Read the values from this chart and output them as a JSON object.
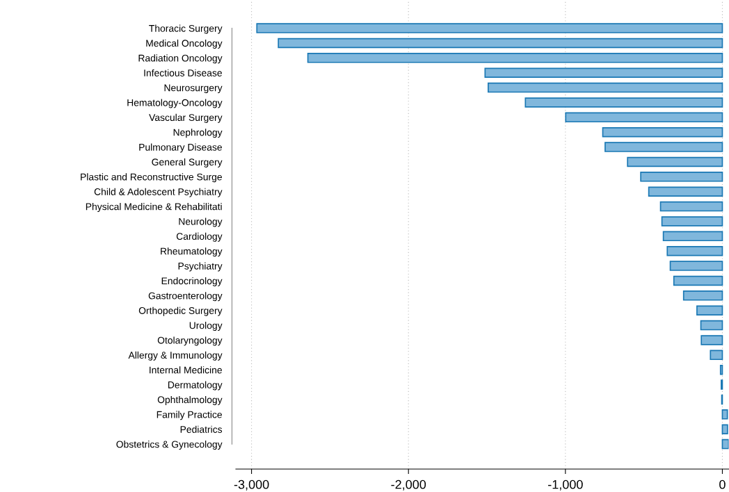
{
  "chart_data": {
    "type": "bar",
    "orientation": "horizontal",
    "categories": [
      "Thoracic Surgery",
      "Medical Oncology",
      "Radiation Oncology",
      "Infectious Disease",
      "Neurosurgery",
      "Hematology-Oncology",
      "Vascular Surgery",
      "Nephrology",
      "Pulmonary Disease",
      "General Surgery",
      "Plastic and Reconstructive Surge",
      "Child & Adolescent Psychiatry",
      "Physical Medicine & Rehabilitati",
      "Neurology",
      "Cardiology",
      "Rheumatology",
      "Psychiatry",
      "Endocrinology",
      "Gastroenterology",
      "Orthopedic Surgery",
      "Urology",
      "Otolaryngology",
      "Allergy & Immunology",
      "Internal Medicine",
      "Dermatology",
      "Ophthalmology",
      "Family Practice",
      "Pediatrics",
      "Obstetrics & Gynecology"
    ],
    "values": [
      -2966,
      -2829,
      -2641,
      -1512,
      -1492,
      -1255,
      -998,
      -762,
      -747,
      -604,
      -520,
      -469,
      -394,
      -385,
      -376,
      -351,
      -332,
      -309,
      -247,
      -162,
      -137,
      -134,
      -76,
      -12,
      -7,
      -4,
      32,
      33,
      40
    ],
    "color": "#80b7dc",
    "xlim": [
      -3100,
      40
    ],
    "xticks": [
      {
        "value": -3000,
        "label": "-3,000"
      },
      {
        "value": -2000,
        "label": "-2,000"
      },
      {
        "value": -1000,
        "label": "-1,000"
      },
      0
    ],
    "grid": "x"
  }
}
